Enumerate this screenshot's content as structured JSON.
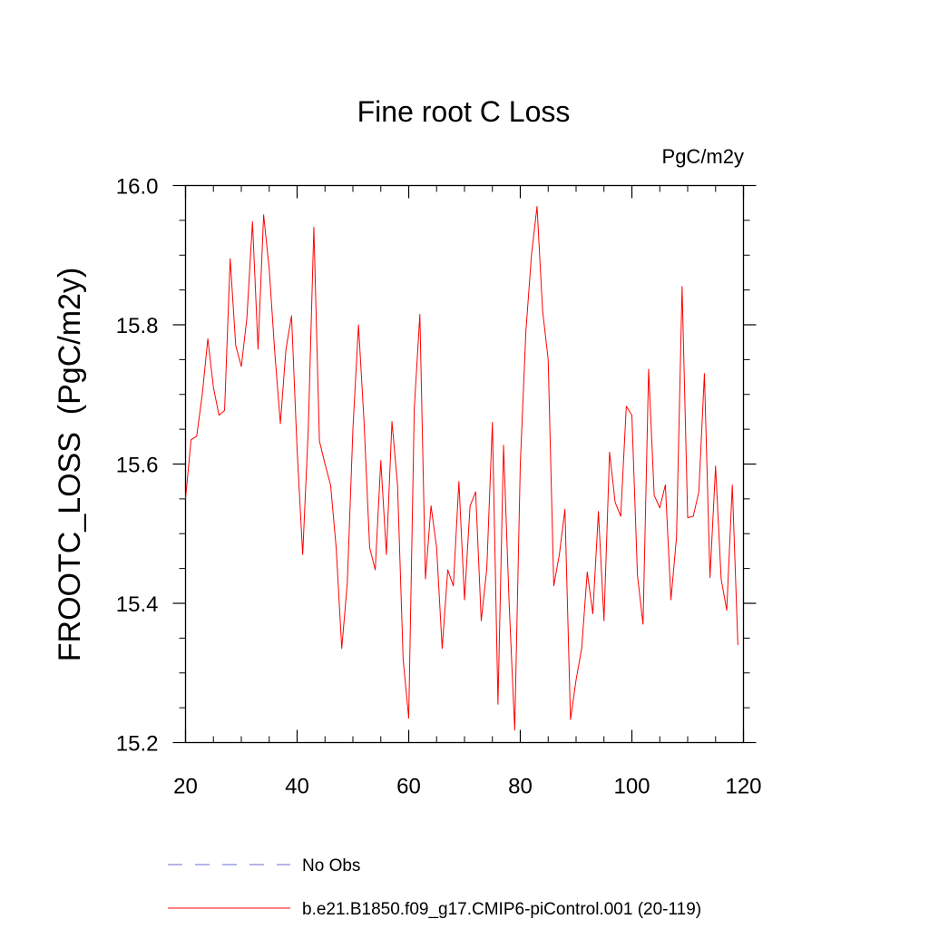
{
  "chart_data": {
    "type": "line",
    "title": "Fine root C Loss",
    "units_label": "PgC/m2y",
    "ylabel": "FROOTC_LOSS  (PgC/m2y)",
    "xlabel": "",
    "xlim": [
      20,
      120
    ],
    "ylim": [
      15.2,
      16.0
    ],
    "xticks": [
      "20",
      "40",
      "60",
      "80",
      "100",
      "120"
    ],
    "yticks": [
      "15.2",
      "15.4",
      "15.6",
      "15.8",
      "16.0"
    ],
    "series": [
      {
        "name": "b.e21.B1850.f09_g17.CMIP6-piControl.001 (20-119)",
        "color": "#ff0000",
        "x_start": 20,
        "values": [
          15.55,
          15.635,
          15.64,
          15.7,
          15.78,
          15.71,
          15.67,
          15.677,
          15.895,
          15.77,
          15.74,
          15.81,
          15.948,
          15.765,
          15.958,
          15.88,
          15.76,
          15.658,
          15.765,
          15.813,
          15.62,
          15.47,
          15.65,
          15.94,
          15.633,
          15.6,
          15.57,
          15.48,
          15.335,
          15.43,
          15.65,
          15.8,
          15.66,
          15.48,
          15.448,
          15.605,
          15.47,
          15.661,
          15.57,
          15.32,
          15.235,
          15.68,
          15.815,
          15.435,
          15.54,
          15.48,
          15.335,
          15.448,
          15.425,
          15.575,
          15.405,
          15.54,
          15.56,
          15.375,
          15.45,
          15.66,
          15.255,
          15.627,
          15.4,
          15.218,
          15.6,
          15.79,
          15.9,
          15.97,
          15.82,
          15.75,
          15.425,
          15.47,
          15.535,
          15.233,
          15.29,
          15.335,
          15.445,
          15.385,
          15.532,
          15.375,
          15.617,
          15.545,
          15.525,
          15.683,
          15.67,
          15.44,
          15.37,
          15.736,
          15.555,
          15.537,
          15.57,
          15.405,
          15.495,
          15.855,
          15.523,
          15.525,
          15.56,
          15.73,
          15.437,
          15.597,
          15.435,
          15.39,
          15.57,
          15.34
        ]
      }
    ]
  },
  "legend": {
    "items": [
      {
        "label": "No Obs",
        "color": "#6b6bd6",
        "style": "dashed"
      },
      {
        "label": "b.e21.B1850.f09_g17.CMIP6-piControl.001 (20-119)",
        "color": "#ff0000",
        "style": "solid"
      }
    ]
  }
}
